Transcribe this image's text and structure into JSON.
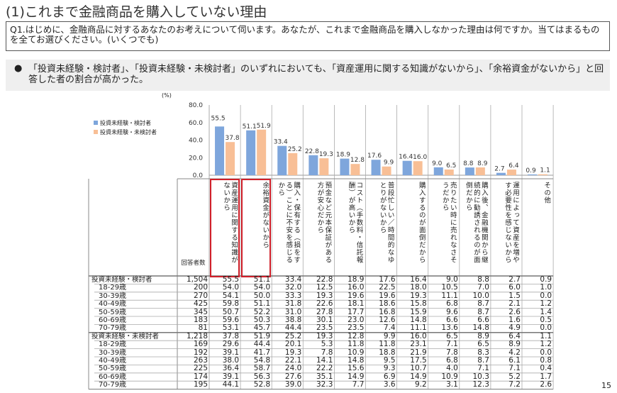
{
  "title": "(1)これまで金融商品を購入していない理由",
  "question": "Q1.はじめに、金融商品に対するあなたのお考えについて伺います。あなたが、これまで金融商品を購入しなかった理由は何ですか。当てはまるものを全てお選びください。(いくつでも)",
  "note": "「投資未経験・検討者」、「投資未経験・未検討者」のいずれにおいても、「資産運用に関する知識がないから」、「余裕資金がないから」と回答した者の割合が高かった。",
  "bullet": "●",
  "page_number": "15",
  "colors": {
    "series1": "#7ea6dc",
    "series2": "#f8bf96",
    "highlight": "#d0202a"
  },
  "chart_data": {
    "type": "bar",
    "unit": "(%)",
    "ylim": [
      0,
      80
    ],
    "yticks": [
      "0.0",
      "20.0",
      "40.0",
      "60.0",
      "80.0"
    ],
    "legend_placement": "left",
    "categories": [
      "資産運用に関する知識がないから",
      "余裕資金がないから",
      "購入・保有する（損をする）ことに不安を感じるから",
      "預金など元本保証がある方が安心だから",
      "コスト（手数料・信託報酬）が高いから",
      "普段忙しい／時間的なゆとりがないから",
      "購入するのが面倒だから",
      "売りたい時に売れなさそうだから",
      "購入後、金融機関から継続的に勧誘されるのが面倒だから",
      "運用によって資産を増やす必要性を感じないから",
      "その他"
    ],
    "series": [
      {
        "name": "投資未経験・検討者",
        "values": [
          55.5,
          51.1,
          33.4,
          22.8,
          18.9,
          17.6,
          16.4,
          9.0,
          8.8,
          2.7,
          0.9
        ]
      },
      {
        "name": "投資未経験・未検討者",
        "values": [
          37.8,
          51.9,
          25.2,
          19.3,
          12.8,
          9.9,
          16.0,
          6.5,
          8.9,
          6.4,
          1.1
        ]
      }
    ]
  },
  "table": {
    "count_header": "回答者数",
    "rows": [
      {
        "label": "投資未経験・検討者",
        "group": true,
        "n": "1,504",
        "v": [
          "55.5",
          "51.1",
          "33.4",
          "22.8",
          "18.9",
          "17.6",
          "16.4",
          "9.0",
          "8.8",
          "2.7",
          "0.9"
        ]
      },
      {
        "label": "18-29歳",
        "n": "200",
        "v": [
          "54.0",
          "54.0",
          "32.0",
          "12.5",
          "16.0",
          "22.5",
          "18.0",
          "10.5",
          "7.0",
          "6.0",
          "1.0"
        ]
      },
      {
        "label": "30-39歳",
        "n": "270",
        "v": [
          "54.1",
          "50.0",
          "33.3",
          "19.3",
          "19.6",
          "19.6",
          "19.3",
          "11.1",
          "10.0",
          "1.5",
          "0.0"
        ]
      },
      {
        "label": "40-49歳",
        "n": "425",
        "v": [
          "59.8",
          "51.1",
          "31.8",
          "22.6",
          "18.1",
          "18.6",
          "15.8",
          "6.8",
          "8.7",
          "2.1",
          "1.2"
        ]
      },
      {
        "label": "50-59歳",
        "n": "345",
        "v": [
          "50.7",
          "52.2",
          "31.0",
          "27.8",
          "17.7",
          "16.8",
          "15.9",
          "9.6",
          "8.7",
          "2.6",
          "1.4"
        ]
      },
      {
        "label": "60-69歳",
        "n": "183",
        "v": [
          "59.6",
          "50.3",
          "38.8",
          "30.1",
          "23.0",
          "12.6",
          "14.8",
          "6.6",
          "6.6",
          "1.6",
          "0.5"
        ]
      },
      {
        "label": "70-79歳",
        "n": "81",
        "v": [
          "53.1",
          "45.7",
          "44.4",
          "23.5",
          "23.5",
          "7.4",
          "11.1",
          "13.6",
          "14.8",
          "4.9",
          "0.0"
        ]
      },
      {
        "label": "投資未経験・未検討者",
        "group": true,
        "n": "1,218",
        "v": [
          "37.8",
          "51.9",
          "25.2",
          "19.3",
          "12.8",
          "9.9",
          "16.0",
          "6.5",
          "8.9",
          "6.4",
          "1.1"
        ]
      },
      {
        "label": "18-29歳",
        "n": "169",
        "v": [
          "29.6",
          "44.4",
          "20.1",
          "5.3",
          "11.8",
          "11.8",
          "23.1",
          "7.1",
          "6.5",
          "8.9",
          "1.2"
        ]
      },
      {
        "label": "30-39歳",
        "n": "192",
        "v": [
          "39.1",
          "41.7",
          "19.3",
          "7.8",
          "10.9",
          "18.8",
          "21.9",
          "7.8",
          "8.3",
          "4.2",
          "0.0"
        ]
      },
      {
        "label": "40-49歳",
        "n": "263",
        "v": [
          "38.0",
          "54.8",
          "22.1",
          "14.1",
          "14.8",
          "9.5",
          "17.5",
          "6.8",
          "8.7",
          "6.1",
          "0.8"
        ]
      },
      {
        "label": "50-59歳",
        "n": "225",
        "v": [
          "36.4",
          "58.7",
          "24.0",
          "22.2",
          "15.6",
          "9.3",
          "10.7",
          "4.0",
          "7.1",
          "7.1",
          "0.4"
        ]
      },
      {
        "label": "60-69歳",
        "n": "174",
        "v": [
          "39.1",
          "56.3",
          "27.6",
          "35.1",
          "14.9",
          "6.9",
          "14.9",
          "10.9",
          "10.3",
          "5.2",
          "1.7"
        ]
      },
      {
        "label": "70-79歳",
        "n": "195",
        "v": [
          "44.1",
          "52.8",
          "39.0",
          "32.3",
          "7.7",
          "3.6",
          "9.2",
          "3.1",
          "12.3",
          "7.2",
          "2.6"
        ]
      }
    ]
  }
}
